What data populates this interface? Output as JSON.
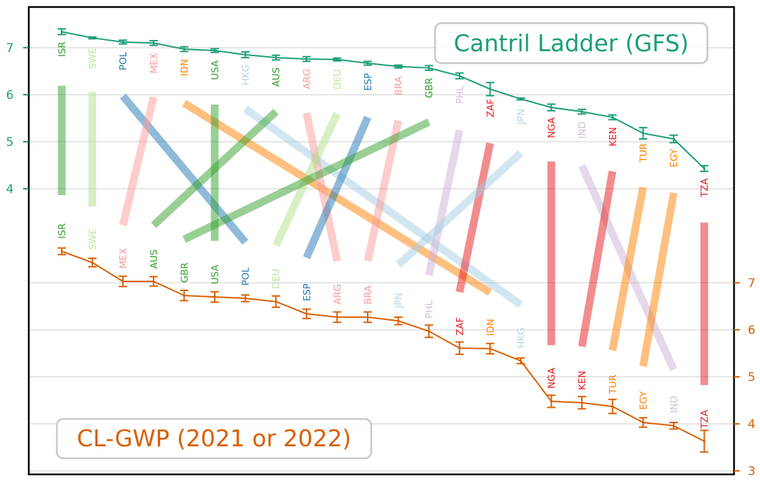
{
  "chart_data": {
    "type": "line",
    "title": "",
    "description": "Bump/slope chart comparing country rankings by Cantril Ladder in two surveys",
    "grid": true,
    "series": [
      {
        "name": "Cantril Ladder (GFS)",
        "color": "#1b9e77",
        "axis": "left",
        "ylim": [
          3.0,
          7.85
        ],
        "yticks": [
          4,
          5,
          6,
          7
        ],
        "order": [
          "ISR",
          "SWE",
          "POL",
          "MEX",
          "IDN",
          "USA",
          "HKG",
          "AUS",
          "ARG",
          "DEU",
          "ESP",
          "BRA",
          "GBR",
          "PHL",
          "ZAF",
          "JPN",
          "NGA",
          "IND",
          "KEN",
          "TUR",
          "EGY",
          "TZA"
        ],
        "values": [
          7.34,
          7.21,
          7.12,
          7.1,
          6.97,
          6.94,
          6.85,
          6.79,
          6.76,
          6.75,
          6.67,
          6.6,
          6.57,
          6.4,
          6.12,
          5.91,
          5.73,
          5.64,
          5.52,
          5.18,
          5.06,
          4.43
        ],
        "errors": [
          0.06,
          0.02,
          0.04,
          0.05,
          0.05,
          0.04,
          0.06,
          0.05,
          0.05,
          0.03,
          0.04,
          0.03,
          0.05,
          0.06,
          0.14,
          0.02,
          0.07,
          0.05,
          0.05,
          0.12,
          0.08,
          0.06
        ]
      },
      {
        "name": "CL-GWP (2021 or 2022)",
        "color": "#d95f02",
        "axis": "right",
        "ylim": [
          2.9,
          12.8
        ],
        "yticks": [
          3,
          4,
          5,
          6,
          7
        ],
        "order": [
          "ISR",
          "SWE",
          "MEX",
          "AUS",
          "GBR",
          "USA",
          "POL",
          "DEU",
          "ESP",
          "ARG",
          "BRA",
          "JPN",
          "PHL",
          "ZAF",
          "IDN",
          "HKG",
          "NGA",
          "KEN",
          "TUR",
          "EGY",
          "IND",
          "TZA"
        ],
        "values": [
          7.67,
          7.43,
          7.03,
          7.03,
          6.73,
          6.7,
          6.67,
          6.6,
          6.34,
          6.27,
          6.27,
          6.19,
          5.97,
          5.61,
          5.6,
          5.34,
          4.48,
          4.45,
          4.37,
          4.03,
          3.96,
          3.63
        ],
        "errors": [
          0.07,
          0.09,
          0.11,
          0.1,
          0.11,
          0.11,
          0.07,
          0.12,
          0.1,
          0.11,
          0.11,
          0.08,
          0.13,
          0.13,
          0.11,
          0.06,
          0.13,
          0.13,
          0.15,
          0.1,
          0.07,
          0.23
        ]
      }
    ],
    "country_colors": {
      "ISR": "#33a02c",
      "USA": "#33a02c",
      "AUS": "#33a02c",
      "GBR": "#33a02c",
      "SWE": "#b2df8a",
      "DEU": "#b2df8a",
      "POL": "#1f78b4",
      "ESP": "#1f78b4",
      "MEX": "#fb9a99",
      "ARG": "#fb9a99",
      "BRA": "#fb9a99",
      "IDN": "#ff7f00",
      "TUR": "#ff7f00",
      "EGY": "#ff7f00",
      "HKG": "#a6cee3",
      "JPN": "#a6cee3",
      "PHL": "#cab2d6",
      "IND": "#cab2d6",
      "ZAF": "#e31a1c",
      "NGA": "#e31a1c",
      "KEN": "#e31a1c",
      "TZA": "#e31a1c"
    },
    "legend": {
      "top_box": "Cantril Ladder (GFS)",
      "top_box_placement": "top-right",
      "bottom_box": "CL-GWP (2021 or 2022)",
      "bottom_box_placement": "bottom-left"
    }
  }
}
